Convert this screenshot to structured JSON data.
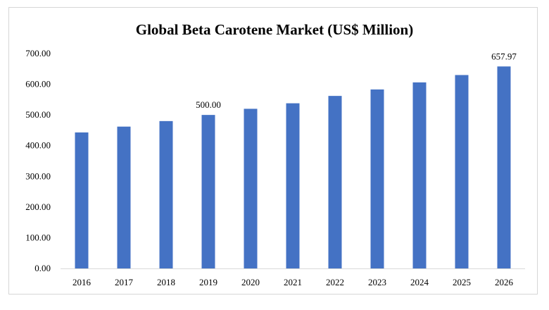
{
  "chart_data": {
    "type": "bar",
    "title": "Global Beta Carotene Market (US$ Million)",
    "categories": [
      "2016",
      "2017",
      "2018",
      "2019",
      "2020",
      "2021",
      "2022",
      "2023",
      "2024",
      "2025",
      "2026"
    ],
    "values": [
      443,
      462,
      480,
      500.0,
      520,
      538,
      562,
      583,
      606,
      630,
      657.97
    ],
    "ylim": [
      0,
      700
    ],
    "yticks": [
      "0.00",
      "100.00",
      "200.00",
      "300.00",
      "400.00",
      "500.00",
      "600.00",
      "700.00"
    ],
    "data_labels": [
      {
        "index": 3,
        "text": "500.00"
      },
      {
        "index": 10,
        "text": "657.97"
      }
    ],
    "bar_color": "#4472c4",
    "grid": false,
    "legend": "none"
  }
}
